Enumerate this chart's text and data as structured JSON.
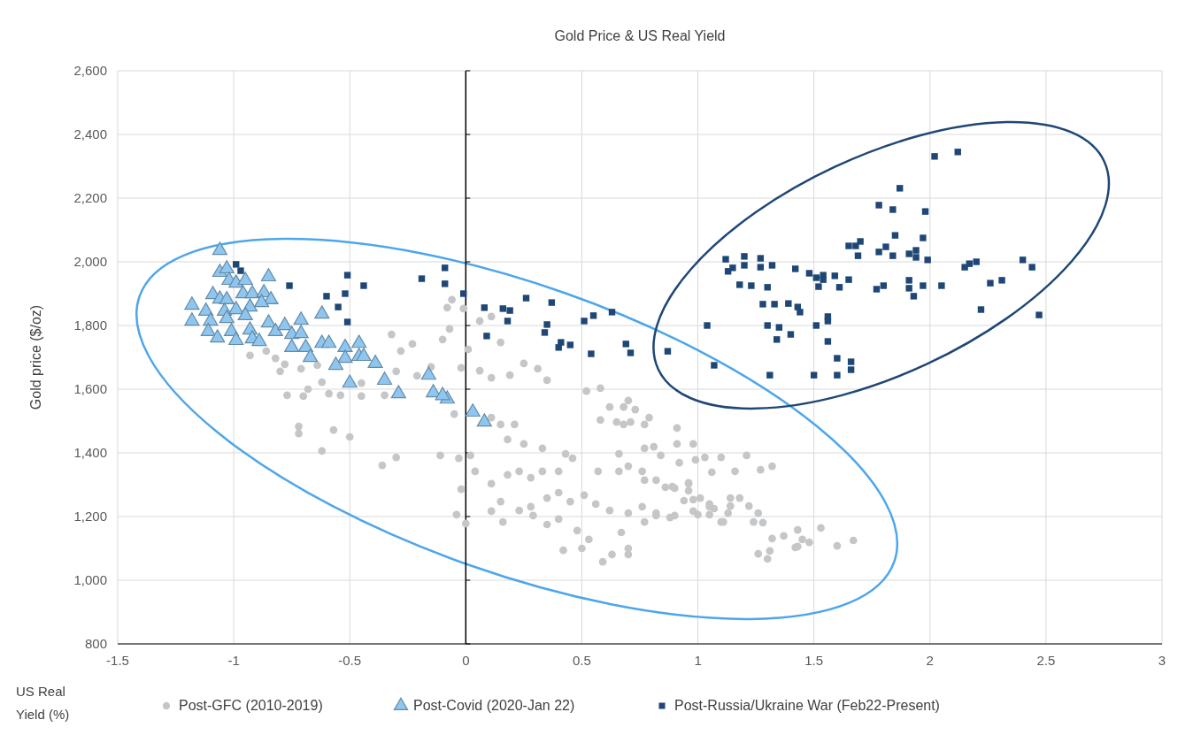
{
  "chart_data": {
    "type": "scatter",
    "title": "Gold Price & US Real Yield",
    "xlabel": "US Real Yield (%)",
    "ylabel": "Gold price ($/oz)",
    "xlim": [
      -1.5,
      3
    ],
    "xticks": [
      -1.5,
      -1,
      -0.5,
      0,
      0.5,
      1,
      1.5,
      2,
      2.5,
      3
    ],
    "ylim": [
      800,
      2600
    ],
    "yticks": [
      {
        "value": 800,
        "label": "800"
      },
      {
        "value": 1000,
        "label": "1,000"
      },
      {
        "value": 1200,
        "label": "1,200"
      },
      {
        "value": 1400,
        "label": "1,400"
      },
      {
        "value": 1600,
        "label": "1,600"
      },
      {
        "value": 1800,
        "label": "1,800"
      },
      {
        "value": 2000,
        "label": "2,000"
      },
      {
        "value": 2200,
        "label": "2,200"
      },
      {
        "value": 2400,
        "label": "2,400"
      },
      {
        "value": 2600,
        "label": "2,600"
      }
    ],
    "grid": true,
    "legend": "bottom",
    "series": [
      {
        "name": "Post-GFC (2010-2019)",
        "color": "#c4c6c8",
        "marker": "circle",
        "x": [
          -0.93,
          -0.86,
          -0.82,
          -0.78,
          -0.8,
          -0.71,
          -0.64,
          -0.62,
          -0.68,
          -0.77,
          -0.7,
          -0.59,
          -0.54,
          -0.45,
          -0.45,
          -0.35,
          -0.72,
          -0.72,
          -0.57,
          -0.5,
          -0.62,
          -0.32,
          -0.28,
          -0.23,
          -0.3,
          -0.21,
          -0.15,
          -0.06,
          -0.08,
          -0.07,
          -0.1,
          -0.05,
          -0.01,
          0.01,
          -0.02,
          0.06,
          0.11,
          0.15,
          0.06,
          0.11,
          0.19,
          0.25,
          0.31,
          0.35,
          0.52,
          0.58,
          -0.36,
          -0.3,
          -0.11,
          -0.03,
          0.02,
          -0.04,
          0,
          -0.02,
          0.11,
          0.15,
          0.18,
          0.25,
          0.33,
          0.21,
          0.04,
          0.11,
          0.18,
          0.23,
          0.28,
          0.33,
          0.4,
          0.43,
          0.46,
          0.57,
          0.28,
          0.35,
          0.4,
          0.45,
          0.51,
          0.56,
          0.15,
          0.11,
          0.16,
          0.23,
          0.29,
          0.35,
          0.4,
          0.48,
          0.53,
          0.42,
          0.5,
          0.59,
          0.63,
          0.7,
          0.7,
          0.67,
          0.62,
          0.7,
          0.76,
          0.82,
          0.9,
          0.66,
          0.7,
          0.76,
          0.82,
          0.89,
          0.66,
          0.77,
          0.81,
          0.84,
          0.91,
          0.98,
          0.92,
          0.99,
          1.03,
          1.06,
          0.96,
          0.98,
          1.05,
          1.1,
          0.58,
          0.65,
          0.68,
          0.71,
          0.77,
          0.79,
          0.62,
          0.68,
          0.7,
          0.73,
          0.91,
          1.1,
          1.21,
          1.16,
          1.27,
          1.32,
          0.77,
          0.86,
          0.9,
          0.96,
          0.96,
          0.94,
          1.01,
          1.05,
          1.07,
          1.14,
          1.18,
          1.14,
          1.13,
          1.22,
          1.26,
          1.24,
          1.28,
          1.11,
          0.98,
          1,
          1.05,
          0.88,
          0.77,
          0.82,
          1.32,
          1.37,
          1.43,
          1.45,
          1.48,
          1.53,
          1.6,
          1.67,
          1.42,
          1.26,
          1.31,
          1.3,
          1.43
        ],
        "values": [
          1706,
          1720,
          1697,
          1678,
          1656,
          1664,
          1675,
          1622,
          1600,
          1581,
          1578,
          1586,
          1581,
          1619,
          1578,
          1581,
          1483,
          1461,
          1472,
          1450,
          1406,
          1772,
          1720,
          1742,
          1656,
          1642,
          1670,
          1881,
          1856,
          1789,
          1756,
          1522,
          1853,
          1725,
          1667,
          1814,
          1828,
          1747,
          1658,
          1636,
          1644,
          1681,
          1664,
          1628,
          1594,
          1603,
          1361,
          1386,
          1392,
          1383,
          1392,
          1206,
          1178,
          1286,
          1511,
          1489,
          1442,
          1428,
          1414,
          1489,
          1342,
          1303,
          1331,
          1342,
          1322,
          1342,
          1342,
          1397,
          1383,
          1342,
          1231,
          1258,
          1275,
          1247,
          1267,
          1239,
          1247,
          1217,
          1183,
          1219,
          1203,
          1175,
          1192,
          1156,
          1128,
          1094,
          1100,
          1058,
          1081,
          1081,
          1100,
          1150,
          1219,
          1211,
          1231,
          1211,
          1203,
          1342,
          1358,
          1342,
          1314,
          1294,
          1397,
          1414,
          1419,
          1392,
          1428,
          1428,
          1369,
          1378,
          1386,
          1339,
          1303,
          1253,
          1231,
          1183,
          1503,
          1497,
          1489,
          1497,
          1489,
          1511,
          1544,
          1544,
          1564,
          1536,
          1478,
          1386,
          1392,
          1342,
          1347,
          1358,
          1314,
          1292,
          1289,
          1306,
          1281,
          1250,
          1258,
          1239,
          1225,
          1258,
          1258,
          1233,
          1211,
          1233,
          1211,
          1183,
          1181,
          1183,
          1217,
          1206,
          1206,
          1197,
          1183,
          1203,
          1131,
          1139,
          1158,
          1128,
          1119,
          1164,
          1108,
          1125,
          1103,
          1083,
          1092,
          1067,
          1106
        ]
      },
      {
        "name": "Post-Covid (2020-Jan 22)",
        "color": "#8fc6f0",
        "marker": "triangle",
        "x": [
          -1.06,
          -1.06,
          -1.03,
          -1.02,
          -0.99,
          -0.95,
          -0.85,
          -1.09,
          -1.06,
          -1.03,
          -0.96,
          -0.92,
          -0.87,
          -0.84,
          -0.88,
          -1.18,
          -1.18,
          -1.12,
          -1.04,
          -0.99,
          -0.93,
          -0.95,
          -1.1,
          -1.03,
          -1.11,
          -1.07,
          -1.01,
          -0.99,
          -0.93,
          -0.92,
          -0.89,
          -0.85,
          -0.82,
          -0.78,
          -0.75,
          -0.71,
          -0.71,
          -0.75,
          -0.69,
          -0.67,
          -0.62,
          -0.62,
          -0.59,
          -0.52,
          -0.46,
          -0.52,
          -0.46,
          -0.44,
          -0.56,
          -0.39,
          -0.5,
          -0.35,
          -0.29,
          -0.16,
          -0.14,
          -0.08,
          -0.1,
          0.03,
          0.08
        ],
        "values": [
          2036,
          1967,
          1978,
          1942,
          1933,
          1942,
          1953,
          1897,
          1883,
          1881,
          1900,
          1900,
          1903,
          1881,
          1872,
          1864,
          1814,
          1845,
          1845,
          1850,
          1858,
          1831,
          1814,
          1822,
          1781,
          1761,
          1781,
          1753,
          1786,
          1758,
          1750,
          1808,
          1781,
          1800,
          1772,
          1817,
          1775,
          1731,
          1731,
          1700,
          1836,
          1744,
          1744,
          1731,
          1744,
          1697,
          1703,
          1703,
          1675,
          1681,
          1619,
          1628,
          1586,
          1644,
          1589,
          1569,
          1580,
          1528,
          1497
        ]
      },
      {
        "name": "Post-Russia/Ukraine War (Feb22-Present)",
        "color": "#1f4776",
        "marker": "square",
        "x": [
          2.02,
          2.12,
          1.87,
          1.78,
          1.84,
          1.98,
          1.85,
          1.97,
          1.65,
          1.68,
          1.7,
          1.69,
          1.78,
          1.81,
          1.84,
          1.91,
          1.94,
          1.94,
          1.99,
          2.15,
          2.17,
          2.2,
          2.4,
          2.44,
          2.26,
          2.31,
          2.22,
          2.47,
          1.12,
          1.15,
          1.13,
          1.2,
          1.2,
          1.27,
          1.27,
          1.32,
          1.42,
          1.48,
          1.51,
          1.54,
          1.54,
          1.52,
          1.59,
          1.61,
          1.65,
          1.18,
          1.23,
          1.3,
          1.77,
          1.8,
          1.91,
          1.91,
          1.93,
          1.97,
          2.05,
          1.28,
          1.33,
          1.39,
          1.43,
          1.44,
          1.04,
          1.3,
          1.35,
          1.4,
          1.34,
          1.51,
          1.56,
          1.56,
          1.56,
          1.6,
          1.66,
          1.66,
          1.07,
          1.31,
          1.5,
          1.6,
          0.87,
          -0.09,
          -0.19,
          -0.09,
          -0.01,
          0.08,
          0.16,
          0.19,
          0.18,
          0.26,
          0.37,
          0.35,
          0.34,
          0.09,
          0.41,
          0.4,
          0.45,
          0.51,
          0.55,
          0.63,
          0.54,
          0.69,
          0.71,
          -0.44,
          -0.99,
          -0.97,
          -0.76,
          -0.6,
          -0.55,
          -0.51,
          -0.52,
          -0.51
        ],
        "values": [
          2331,
          2345,
          2231,
          2178,
          2164,
          2158,
          2083,
          2075,
          2050,
          2050,
          2064,
          2019,
          2031,
          2047,
          2019,
          2025,
          2036,
          2014,
          2006,
          1983,
          1994,
          2000,
          2006,
          1983,
          1933,
          1942,
          1850,
          1833,
          2008,
          1981,
          1970,
          2017,
          1989,
          2011,
          1983,
          1989,
          1978,
          1964,
          1950,
          1958,
          1944,
          1922,
          1956,
          1920,
          1944,
          1928,
          1925,
          1920,
          1914,
          1925,
          1942,
          1917,
          1892,
          1925,
          1925,
          1867,
          1867,
          1869,
          1858,
          1842,
          1800,
          1800,
          1794,
          1772,
          1756,
          1800,
          1828,
          1814,
          1750,
          1697,
          1686,
          1661,
          1675,
          1644,
          1644,
          1644,
          1719,
          1981,
          1947,
          1931,
          1900,
          1856,
          1853,
          1847,
          1814,
          1886,
          1872,
          1803,
          1778,
          1767,
          1747,
          1731,
          1739,
          1814,
          1831,
          1842,
          1711,
          1742,
          1714,
          1925,
          1992,
          1972,
          1925,
          1892,
          1858,
          1958,
          1900,
          1811
        ]
      }
    ]
  }
}
